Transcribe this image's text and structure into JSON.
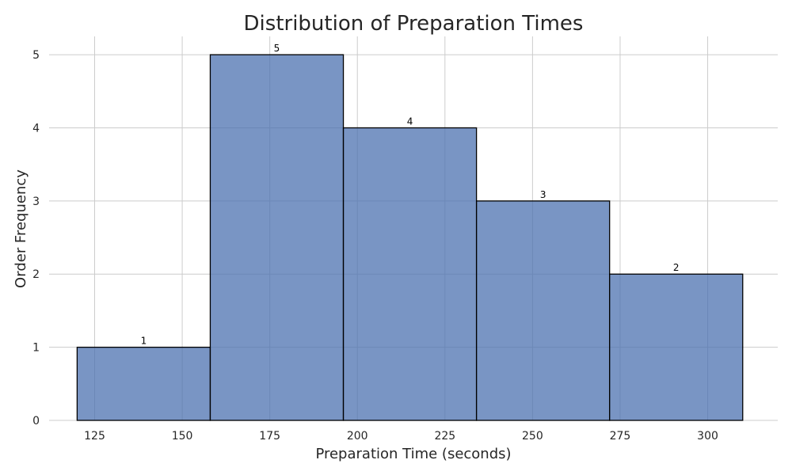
{
  "chart_data": {
    "type": "bar",
    "title": "Distribution of Preparation Times",
    "xlabel": "Preparation Time (seconds)",
    "ylabel": "Order Frequency",
    "xlim": [
      112,
      320
    ],
    "ylim": [
      0,
      5.25
    ],
    "xticks": [
      125,
      150,
      175,
      200,
      225,
      250,
      275,
      300
    ],
    "yticks": [
      0,
      1,
      2,
      3,
      4,
      5
    ],
    "bins": [
      {
        "start": 120,
        "end": 158,
        "value": 1,
        "label": "1"
      },
      {
        "start": 158,
        "end": 196,
        "value": 5,
        "label": "5"
      },
      {
        "start": 196,
        "end": 234,
        "value": 4,
        "label": "4"
      },
      {
        "start": 234,
        "end": 272,
        "value": 3,
        "label": "3"
      },
      {
        "start": 272,
        "end": 310,
        "value": 2,
        "label": "2"
      }
    ],
    "grid": true,
    "bar_color": "#4c72b0",
    "bar_edge_color": "#000000"
  }
}
